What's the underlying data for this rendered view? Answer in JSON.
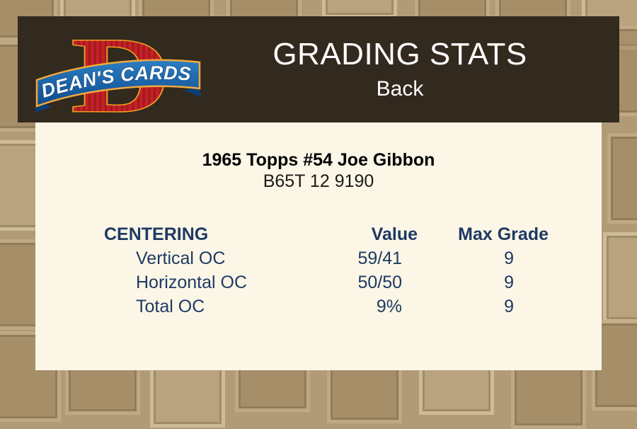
{
  "header": {
    "logo": {
      "letter": "D",
      "banner_text": "DEAN'S CARDS"
    },
    "title": "GRADING STATS",
    "subtitle": "Back"
  },
  "card": {
    "title": "1965 Topps #54 Joe Gibbon",
    "code": "B65T 12 9190"
  },
  "stats_table": {
    "headers": {
      "category": "CENTERING",
      "value": "Value",
      "max_grade": "Max Grade"
    },
    "rows": [
      {
        "label": "Vertical OC",
        "value": "59/41",
        "max_grade": "9"
      },
      {
        "label": "Horizontal OC",
        "value": "50/50",
        "max_grade": "9"
      },
      {
        "label": "Total OC",
        "value": "9%",
        "max_grade": "9"
      }
    ]
  },
  "colors": {
    "page_background": "#b19b77",
    "header_bar": "#32291f",
    "panel_background": "#fcf6e6",
    "stats_text": "#1e3a64",
    "header_text": "#ffffff",
    "logo_red": "#c42127",
    "logo_orange": "#f59e1f",
    "logo_blue": "#1b61a6",
    "logo_gold": "#f2a93b"
  }
}
